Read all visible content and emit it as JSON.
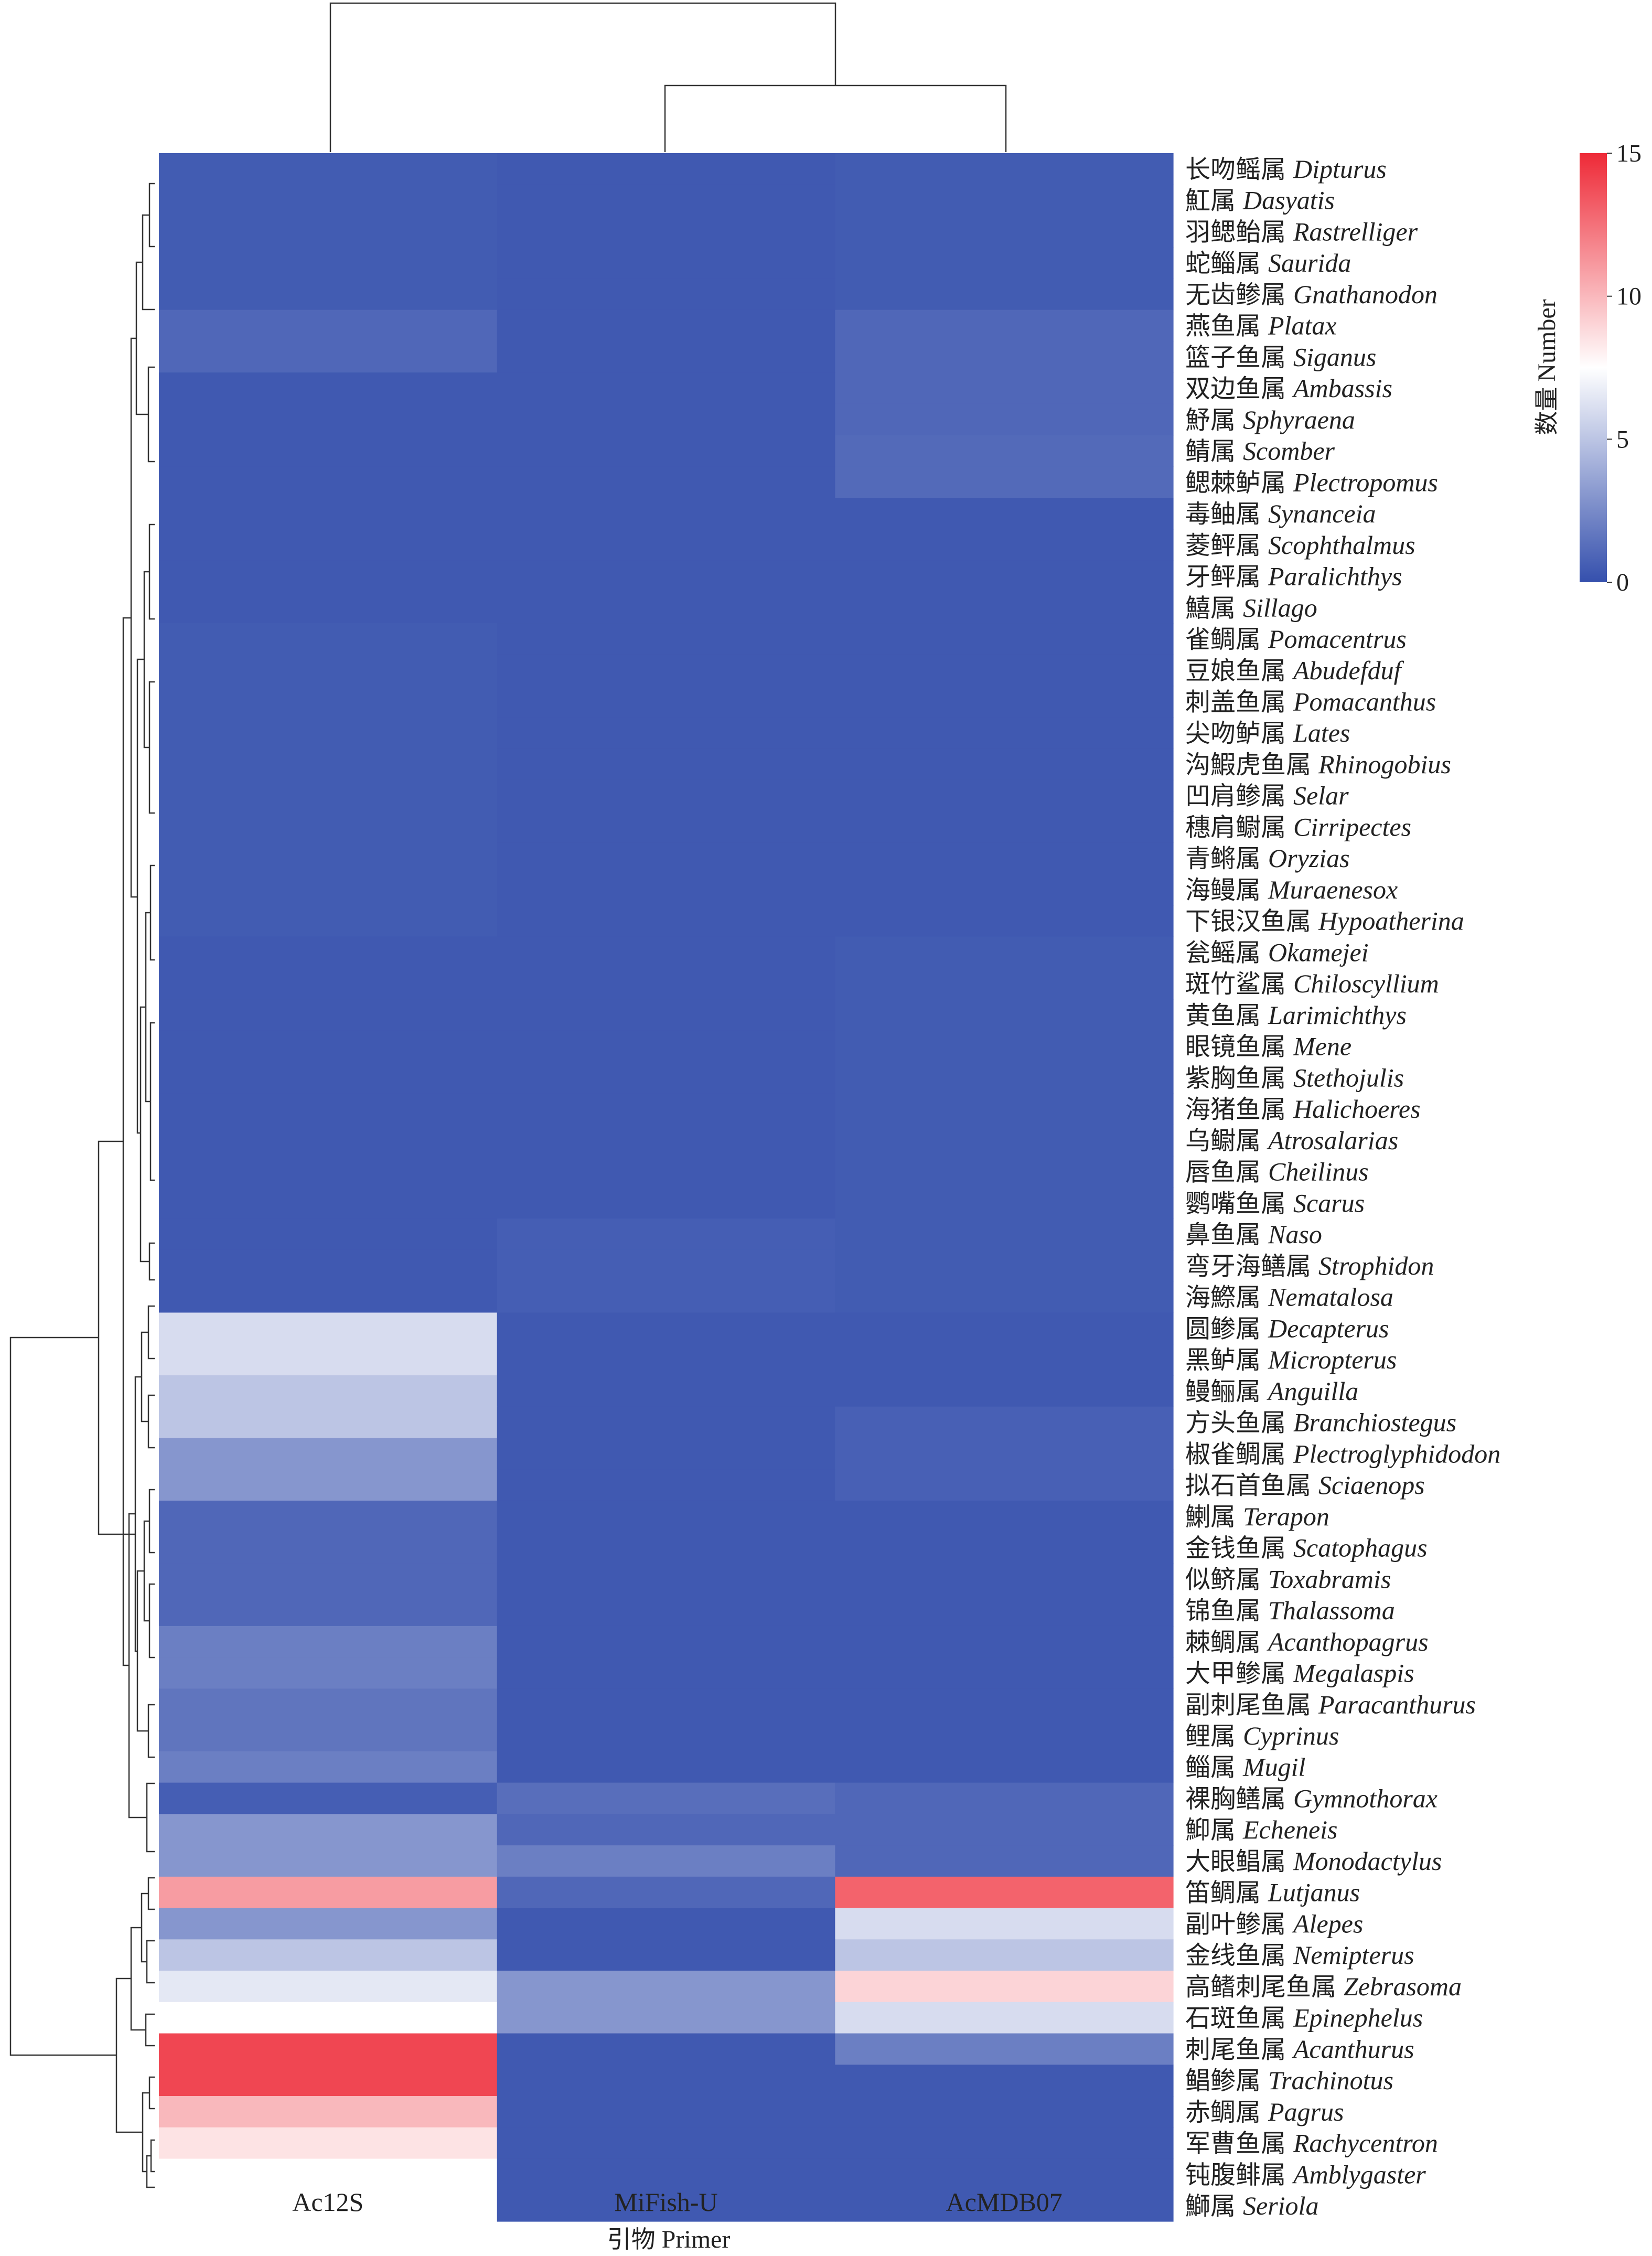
{
  "chart_data": {
    "type": "heatmap",
    "title": "",
    "xlabel": {
      "cn": "引物",
      "en": "Primer"
    },
    "columns": [
      "Ac12S",
      "MiFish-U",
      "AcMDB07"
    ],
    "rows": [
      {
        "cn": "长吻鳐属",
        "latin": "Dipturus",
        "values": [
          0.5,
          0.4,
          0.5
        ]
      },
      {
        "cn": "魟属",
        "latin": "Dasyatis",
        "values": [
          0.5,
          0.4,
          0.5
        ]
      },
      {
        "cn": "羽鳃鲐属",
        "latin": "Rastrelliger",
        "values": [
          0.5,
          0.4,
          0.5
        ]
      },
      {
        "cn": "蛇鲻属",
        "latin": "Saurida",
        "values": [
          0.5,
          0.4,
          0.5
        ]
      },
      {
        "cn": "无齿鲹属",
        "latin": "Gnathanodon",
        "values": [
          0.5,
          0.4,
          0.5
        ]
      },
      {
        "cn": "燕鱼属",
        "latin": "Platax",
        "values": [
          1,
          0.4,
          1
        ]
      },
      {
        "cn": "篮子鱼属",
        "latin": "Siganus",
        "values": [
          1,
          0.4,
          1
        ]
      },
      {
        "cn": "双边鱼属",
        "latin": "Ambassis",
        "values": [
          0.4,
          0.4,
          1
        ]
      },
      {
        "cn": "魣属",
        "latin": "Sphyraena",
        "values": [
          0.4,
          0.4,
          1
        ]
      },
      {
        "cn": "鲭属",
        "latin": "Scomber",
        "values": [
          0.4,
          0.4,
          1.1
        ]
      },
      {
        "cn": "鳃棘鲈属",
        "latin": "Plectropomus",
        "values": [
          0.4,
          0.4,
          1.1
        ]
      },
      {
        "cn": "毒鲉属",
        "latin": "Synanceia",
        "values": [
          0.4,
          0.4,
          0.4
        ]
      },
      {
        "cn": "菱鲆属",
        "latin": "Scophthalmus",
        "values": [
          0.4,
          0.4,
          0.4
        ]
      },
      {
        "cn": "牙鲆属",
        "latin": "Paralichthys",
        "values": [
          0.4,
          0.4,
          0.4
        ]
      },
      {
        "cn": "鱚属",
        "latin": "Sillago",
        "values": [
          0.4,
          0.4,
          0.4
        ]
      },
      {
        "cn": "雀鲷属",
        "latin": "Pomacentrus",
        "values": [
          0.5,
          0.4,
          0.4
        ]
      },
      {
        "cn": "豆娘鱼属",
        "latin": "Abudefduf",
        "values": [
          0.5,
          0.4,
          0.4
        ]
      },
      {
        "cn": "刺盖鱼属",
        "latin": "Pomacanthus",
        "values": [
          0.5,
          0.4,
          0.4
        ]
      },
      {
        "cn": "尖吻鲈属",
        "latin": "Lates",
        "values": [
          0.5,
          0.4,
          0.4
        ]
      },
      {
        "cn": "沟鰕虎鱼属",
        "latin": "Rhinogobius",
        "values": [
          0.5,
          0.4,
          0.4
        ]
      },
      {
        "cn": "凹肩鲹属",
        "latin": "Selar",
        "values": [
          0.5,
          0.4,
          0.4
        ]
      },
      {
        "cn": "穗肩鳚属",
        "latin": "Cirripectes",
        "values": [
          0.5,
          0.4,
          0.4
        ]
      },
      {
        "cn": "青鳉属",
        "latin": "Oryzias",
        "values": [
          0.5,
          0.4,
          0.4
        ]
      },
      {
        "cn": "海鳗属",
        "latin": "Muraenesox",
        "values": [
          0.5,
          0.4,
          0.4
        ]
      },
      {
        "cn": "下银汉鱼属",
        "latin": "Hypoatherina",
        "values": [
          0.5,
          0.4,
          0.4
        ]
      },
      {
        "cn": "瓮鳐属",
        "latin": "Okamejei",
        "values": [
          0.4,
          0.4,
          0.5
        ]
      },
      {
        "cn": "斑竹鲨属",
        "latin": "Chiloscyllium",
        "values": [
          0.4,
          0.4,
          0.5
        ]
      },
      {
        "cn": "黄鱼属",
        "latin": "Larimichthys",
        "values": [
          0.4,
          0.4,
          0.5
        ]
      },
      {
        "cn": "眼镜鱼属",
        "latin": "Mene",
        "values": [
          0.4,
          0.4,
          0.5
        ]
      },
      {
        "cn": "紫胸鱼属",
        "latin": "Stethojulis",
        "values": [
          0.4,
          0.4,
          0.5
        ]
      },
      {
        "cn": "海猪鱼属",
        "latin": "Halichoeres",
        "values": [
          0.4,
          0.4,
          0.5
        ]
      },
      {
        "cn": "乌鳚属",
        "latin": "Atrosalarias",
        "values": [
          0.4,
          0.4,
          0.5
        ]
      },
      {
        "cn": "唇鱼属",
        "latin": "Cheilinus",
        "values": [
          0.4,
          0.4,
          0.5
        ]
      },
      {
        "cn": "鹦嘴鱼属",
        "latin": "Scarus",
        "values": [
          0.4,
          0.4,
          0.5
        ]
      },
      {
        "cn": "鼻鱼属",
        "latin": "Naso",
        "values": [
          0.4,
          0.6,
          0.5
        ]
      },
      {
        "cn": "弯牙海鳝属",
        "latin": "Strophidon",
        "values": [
          0.4,
          0.6,
          0.5
        ]
      },
      {
        "cn": "海鰶属",
        "latin": "Nematalosa",
        "values": [
          0.4,
          0.6,
          0.5
        ]
      },
      {
        "cn": "圆鲹属",
        "latin": "Decapterus",
        "values": [
          6,
          0.4,
          0.4
        ]
      },
      {
        "cn": "黑鲈属",
        "latin": "Micropterus",
        "values": [
          6,
          0.4,
          0.4
        ]
      },
      {
        "cn": "鳗鲡属",
        "latin": "Anguilla",
        "values": [
          5,
          0.4,
          0.4
        ]
      },
      {
        "cn": "方头鱼属",
        "latin": "Branchiostegus",
        "values": [
          5,
          0.4,
          0.7
        ]
      },
      {
        "cn": "椒雀鲷属",
        "latin": "Plectroglyphidodon",
        "values": [
          3,
          0.4,
          0.7
        ]
      },
      {
        "cn": "拟石首鱼属",
        "latin": "Sciaenops",
        "values": [
          3,
          0.4,
          0.7
        ]
      },
      {
        "cn": "鯻属",
        "latin": "Terapon",
        "values": [
          1,
          0.4,
          0.4
        ]
      },
      {
        "cn": "金钱鱼属",
        "latin": "Scatophagus",
        "values": [
          1,
          0.4,
          0.4
        ]
      },
      {
        "cn": "似鲚属",
        "latin": "Toxabramis",
        "values": [
          1,
          0.4,
          0.4
        ]
      },
      {
        "cn": "锦鱼属",
        "latin": "Thalassoma",
        "values": [
          1,
          0.4,
          0.4
        ]
      },
      {
        "cn": "棘鲷属",
        "latin": "Acanthopagrus",
        "values": [
          2,
          0.4,
          0.4
        ]
      },
      {
        "cn": "大甲鲹属",
        "latin": "Megalaspis",
        "values": [
          2,
          0.4,
          0.4
        ]
      },
      {
        "cn": "副刺尾鱼属",
        "latin": "Paracanthurus",
        "values": [
          1.6,
          0.4,
          0.4
        ]
      },
      {
        "cn": "鲤属",
        "latin": "Cyprinus",
        "values": [
          1.6,
          0.4,
          0.4
        ]
      },
      {
        "cn": "鲻属",
        "latin": "Mugil",
        "values": [
          2,
          0.4,
          0.4
        ]
      },
      {
        "cn": "裸胸鳝属",
        "latin": "Gymnothorax",
        "values": [
          0.6,
          1.3,
          1
        ]
      },
      {
        "cn": "鮣属",
        "latin": "Echeneis",
        "values": [
          3,
          1,
          1
        ]
      },
      {
        "cn": "大眼鲳属",
        "latin": "Monodactylus",
        "values": [
          3,
          2,
          1
        ]
      },
      {
        "cn": "笛鲷属",
        "latin": "Lutjanus",
        "values": [
          11,
          1,
          13
        ]
      },
      {
        "cn": "副叶鲹属",
        "latin": "Alepes",
        "values": [
          3,
          0.4,
          6
        ]
      },
      {
        "cn": "金线鱼属",
        "latin": "Nemipterus",
        "values": [
          5,
          0.4,
          5
        ]
      },
      {
        "cn": "高鳍刺尾鱼属",
        "latin": "Zebrasoma",
        "values": [
          6.5,
          3,
          9
        ]
      },
      {
        "cn": "石斑鱼属",
        "latin": "Epinephelus",
        "values": [
          7.5,
          3,
          6
        ]
      },
      {
        "cn": "刺尾鱼属",
        "latin": "Acanthurus",
        "values": [
          14,
          0.4,
          2
        ]
      },
      {
        "cn": "鲳鲹属",
        "latin": "Trachinotus",
        "values": [
          14,
          0.4,
          0.4
        ]
      },
      {
        "cn": "赤鲷属",
        "latin": "Pagrus",
        "values": [
          10,
          0.4,
          0.4
        ]
      },
      {
        "cn": "军曹鱼属",
        "latin": "Rachycentron",
        "values": [
          8.5,
          0.4,
          0.4
        ]
      },
      {
        "cn": "钝腹鲱属",
        "latin": "Amblygaster",
        "values": [
          7.5,
          0.4,
          0.4
        ]
      },
      {
        "cn": "鰤属",
        "latin": "Seriola",
        "values": [
          7.5,
          0.4,
          0.4
        ]
      }
    ],
    "legend": {
      "title": {
        "cn": "数量",
        "en": "Number"
      },
      "ticks": [
        "15",
        "10",
        "5",
        "0"
      ],
      "tick_values": [
        15,
        10,
        5,
        0
      ],
      "range": [
        0,
        15
      ],
      "colors": {
        "low": "#3550ad",
        "mid": "#ffffff",
        "high": "#ee2a37"
      },
      "placement": "top-right"
    },
    "dendrogram": {
      "rows": true,
      "columns": true,
      "placement": "left-and-top"
    }
  }
}
